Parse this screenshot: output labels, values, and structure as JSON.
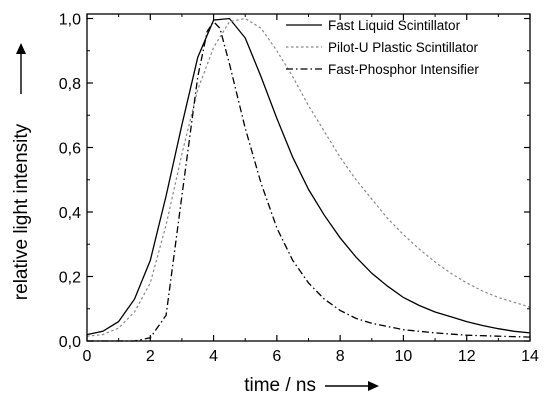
{
  "chart_data": {
    "type": "line",
    "xlabel": "time / ns",
    "ylabel": "relative light intensity",
    "xlim": [
      0,
      14
    ],
    "ylim": [
      0,
      1.05
    ],
    "x_ticks": [
      "0",
      "2",
      "4",
      "6",
      "8",
      "10",
      "12",
      "14"
    ],
    "y_ticks": [
      "0,0",
      "0,2",
      "0,4",
      "0,6",
      "0,8",
      "1,0"
    ],
    "grid": false,
    "legend_position": "top-right",
    "series": [
      {
        "name": "Fast Liquid Scintillator",
        "style": "solid",
        "color": "#000000",
        "points": [
          [
            0,
            0.02
          ],
          [
            0.5,
            0.03
          ],
          [
            1,
            0.06
          ],
          [
            1.5,
            0.13
          ],
          [
            2,
            0.25
          ],
          [
            2.5,
            0.45
          ],
          [
            3,
            0.67
          ],
          [
            3.5,
            0.88
          ],
          [
            4,
            0.995
          ],
          [
            4.5,
            1.0
          ],
          [
            5,
            0.94
          ],
          [
            5.5,
            0.82
          ],
          [
            6,
            0.69
          ],
          [
            6.5,
            0.57
          ],
          [
            7,
            0.47
          ],
          [
            7.5,
            0.39
          ],
          [
            8,
            0.32
          ],
          [
            8.5,
            0.26
          ],
          [
            9,
            0.21
          ],
          [
            9.5,
            0.17
          ],
          [
            10,
            0.135
          ],
          [
            10.5,
            0.11
          ],
          [
            11,
            0.09
          ],
          [
            11.5,
            0.075
          ],
          [
            12,
            0.06
          ],
          [
            12.5,
            0.048
          ],
          [
            13,
            0.038
          ],
          [
            13.5,
            0.03
          ],
          [
            14,
            0.025
          ]
        ]
      },
      {
        "name": "Pilot-U Plastic Scintillator",
        "style": "dotted",
        "color": "#888888",
        "points": [
          [
            0,
            0.015
          ],
          [
            0.5,
            0.02
          ],
          [
            1,
            0.04
          ],
          [
            1.5,
            0.09
          ],
          [
            2,
            0.18
          ],
          [
            2.5,
            0.36
          ],
          [
            3,
            0.58
          ],
          [
            3.5,
            0.78
          ],
          [
            4,
            0.91
          ],
          [
            4.5,
            0.99
          ],
          [
            5,
            1.0
          ],
          [
            5.5,
            0.97
          ],
          [
            6,
            0.9
          ],
          [
            6.5,
            0.82
          ],
          [
            7,
            0.73
          ],
          [
            7.5,
            0.65
          ],
          [
            8,
            0.57
          ],
          [
            8.5,
            0.5
          ],
          [
            9,
            0.44
          ],
          [
            9.5,
            0.38
          ],
          [
            10,
            0.33
          ],
          [
            10.5,
            0.285
          ],
          [
            11,
            0.245
          ],
          [
            11.5,
            0.21
          ],
          [
            12,
            0.18
          ],
          [
            12.5,
            0.155
          ],
          [
            13,
            0.135
          ],
          [
            13.5,
            0.12
          ],
          [
            14,
            0.105
          ]
        ]
      },
      {
        "name": "Fast-Phosphor Intensifier",
        "style": "dash-dot",
        "color": "#000000",
        "points": [
          [
            0,
            0.0
          ],
          [
            1.5,
            0.0
          ],
          [
            2,
            0.01
          ],
          [
            2.5,
            0.08
          ],
          [
            3,
            0.45
          ],
          [
            3.5,
            0.82
          ],
          [
            3.8,
            0.96
          ],
          [
            4,
            0.99
          ],
          [
            4.2,
            0.97
          ],
          [
            4.5,
            0.86
          ],
          [
            5,
            0.66
          ],
          [
            5.5,
            0.49
          ],
          [
            6,
            0.35
          ],
          [
            6.5,
            0.25
          ],
          [
            7,
            0.18
          ],
          [
            7.5,
            0.13
          ],
          [
            8,
            0.095
          ],
          [
            8.5,
            0.07
          ],
          [
            9,
            0.055
          ],
          [
            9.5,
            0.045
          ],
          [
            10,
            0.035
          ],
          [
            11,
            0.025
          ],
          [
            12,
            0.018
          ],
          [
            13,
            0.015
          ],
          [
            14,
            0.012
          ]
        ]
      }
    ]
  }
}
